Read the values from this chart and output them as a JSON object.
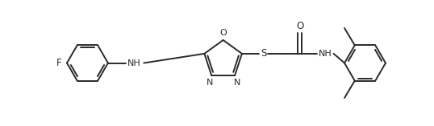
{
  "background": "#ffffff",
  "line_color": "#2a2a2a",
  "line_width": 1.4,
  "figsize": [
    5.38,
    1.57
  ],
  "dpi": 100,
  "xlim": [
    0,
    10.5
  ],
  "ylim": [
    0,
    3.08
  ]
}
